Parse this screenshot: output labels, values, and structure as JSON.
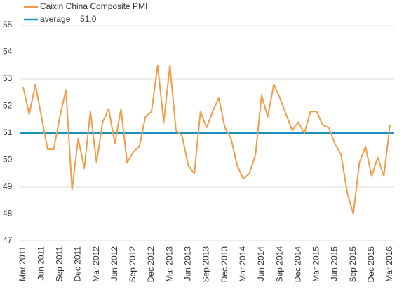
{
  "chart_data": {
    "type": "line",
    "categories": [
      "Mar 2011",
      null,
      null,
      "Jun 2011",
      null,
      null,
      "Sep 2011",
      null,
      null,
      "Dec 2011",
      null,
      null,
      "Mar 2012",
      null,
      null,
      "Jun 2012",
      null,
      null,
      "Sep 2012",
      null,
      null,
      "Dec 2012",
      null,
      null,
      "Mar 2013",
      null,
      null,
      "Jun 2013",
      null,
      null,
      "Sep 2013",
      null,
      null,
      "Dec 2013",
      null,
      null,
      "Mar 2014",
      null,
      null,
      "Jun 2014",
      null,
      null,
      "Sep 2014",
      null,
      null,
      "Dec 2014",
      null,
      null,
      "Mar 2015",
      null,
      null,
      "Jun 2015",
      null,
      null,
      "Sep 2015",
      null,
      null,
      "Dec 2015",
      null,
      null,
      "Mar 2016"
    ],
    "series": [
      {
        "name": "Caixin China Composite PMI",
        "color": "#f39c4a",
        "values": [
          52.7,
          51.7,
          52.8,
          51.6,
          50.4,
          50.4,
          51.6,
          52.6,
          48.9,
          50.8,
          49.7,
          51.8,
          49.9,
          51.4,
          51.9,
          50.6,
          51.9,
          49.9,
          50.3,
          50.5,
          51.6,
          51.8,
          53.5,
          51.4,
          53.5,
          51.1,
          50.9,
          49.8,
          49.5,
          51.8,
          51.2,
          51.8,
          52.3,
          51.2,
          50.8,
          49.8,
          49.3,
          49.5,
          50.2,
          52.4,
          51.6,
          52.8,
          52.3,
          51.7,
          51.1,
          51.4,
          51.0,
          51.8,
          51.8,
          51.3,
          51.2,
          50.6,
          50.2,
          48.8,
          48.0,
          49.9,
          50.5,
          49.4,
          50.1,
          49.4,
          51.3
        ]
      }
    ],
    "average": {
      "name": "average = 51.0",
      "value": 51.0,
      "color": "#1a8fc2"
    },
    "ylim": [
      47,
      55
    ],
    "yticks": [
      47,
      48,
      49,
      50,
      51,
      52,
      53,
      54,
      55
    ],
    "grid": true
  }
}
